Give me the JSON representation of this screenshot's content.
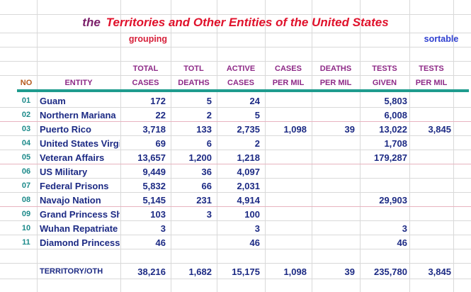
{
  "title": {
    "prefix": "the",
    "main": "Territories and Other Entities of the United States"
  },
  "labels": {
    "grouping": "grouping",
    "sortable": "sortable"
  },
  "headers": {
    "row1": [
      "",
      "",
      "TOTAL",
      "TOTL",
      "ACTIVE",
      "CASES",
      "DEATHS",
      "TESTS",
      "TESTS"
    ],
    "row2": [
      "NO",
      "ENTITY",
      "CASES",
      "DEATHS",
      "CASES",
      "PER MIL",
      "PER MIL",
      "GIVEN",
      "PER MIL"
    ]
  },
  "rows": [
    {
      "no": "01",
      "entity": "Guam",
      "total_cases": "172",
      "total_deaths": "5",
      "active_cases": "24",
      "cases_per_mil": "",
      "deaths_per_mil": "",
      "tests_given": "5,803",
      "tests_per_mil": ""
    },
    {
      "no": "02",
      "entity": "Northern Mariana",
      "total_cases": "22",
      "total_deaths": "2",
      "active_cases": "5",
      "cases_per_mil": "",
      "deaths_per_mil": "",
      "tests_given": "6,008",
      "tests_per_mil": ""
    },
    {
      "no": "03",
      "entity": "Puerto Rico",
      "total_cases": "3,718",
      "total_deaths": "133",
      "active_cases": "2,735",
      "cases_per_mil": "1,098",
      "deaths_per_mil": "39",
      "tests_given": "13,022",
      "tests_per_mil": "3,845"
    },
    {
      "no": "04",
      "entity": "United States Virgi",
      "total_cases": "69",
      "total_deaths": "6",
      "active_cases": "2",
      "cases_per_mil": "",
      "deaths_per_mil": "",
      "tests_given": "1,708",
      "tests_per_mil": ""
    },
    {
      "no": "05",
      "entity": "Veteran Affairs",
      "total_cases": "13,657",
      "total_deaths": "1,200",
      "active_cases": "1,218",
      "cases_per_mil": "",
      "deaths_per_mil": "",
      "tests_given": "179,287",
      "tests_per_mil": ""
    },
    {
      "no": "06",
      "entity": "US Military",
      "total_cases": "9,449",
      "total_deaths": "36",
      "active_cases": "4,097",
      "cases_per_mil": "",
      "deaths_per_mil": "",
      "tests_given": "",
      "tests_per_mil": ""
    },
    {
      "no": "07",
      "entity": "Federal Prisons",
      "total_cases": "5,832",
      "total_deaths": "66",
      "active_cases": "2,031",
      "cases_per_mil": "",
      "deaths_per_mil": "",
      "tests_given": "",
      "tests_per_mil": ""
    },
    {
      "no": "08",
      "entity": "Navajo Nation",
      "total_cases": "5,145",
      "total_deaths": "231",
      "active_cases": "4,914",
      "cases_per_mil": "",
      "deaths_per_mil": "",
      "tests_given": "29,903",
      "tests_per_mil": ""
    },
    {
      "no": "09",
      "entity": "Grand Princess Shi",
      "total_cases": "103",
      "total_deaths": "3",
      "active_cases": "100",
      "cases_per_mil": "",
      "deaths_per_mil": "",
      "tests_given": "",
      "tests_per_mil": ""
    },
    {
      "no": "10",
      "entity": "Wuhan Repatriate",
      "total_cases": "3",
      "total_deaths": "",
      "active_cases": "3",
      "cases_per_mil": "",
      "deaths_per_mil": "",
      "tests_given": "3",
      "tests_per_mil": ""
    },
    {
      "no": "11",
      "entity": "Diamond Princess",
      "total_cases": "46",
      "total_deaths": "",
      "active_cases": "46",
      "cases_per_mil": "",
      "deaths_per_mil": "",
      "tests_given": "46",
      "tests_per_mil": ""
    }
  ],
  "totals": {
    "label": "TERRITORY/OTH",
    "total_cases": "38,216",
    "total_deaths": "1,682",
    "active_cases": "15,175",
    "cases_per_mil": "1,098",
    "deaths_per_mil": "39",
    "tests_given": "235,780",
    "tests_per_mil": "3,845"
  }
}
